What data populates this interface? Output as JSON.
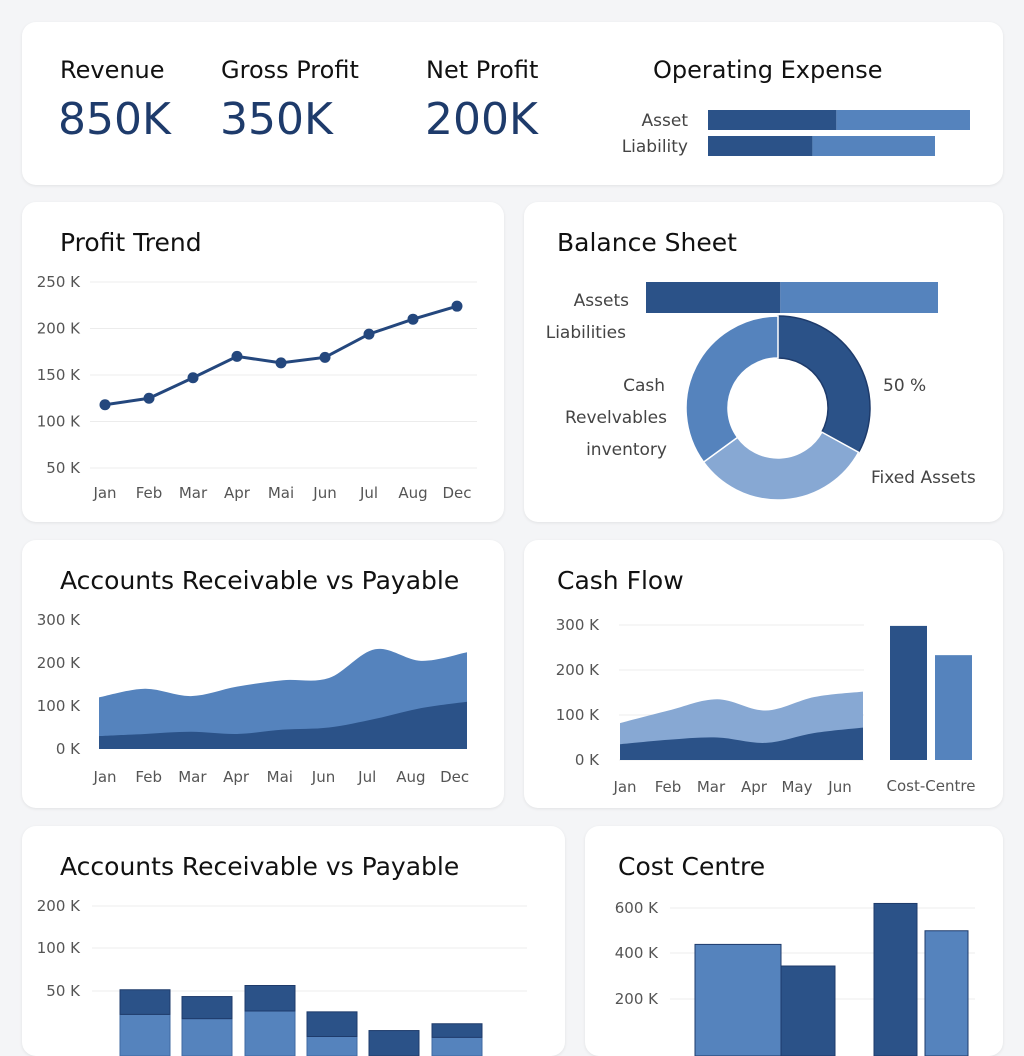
{
  "colors": {
    "dark": "#2b5288",
    "mid": "#5583bd",
    "light": "#87a8d3",
    "line": "#24477d",
    "kpi": "#1e3b6b"
  },
  "kpis": [
    {
      "label": "Revenue",
      "value": "850K"
    },
    {
      "label": "Gross Profit",
      "value": "350K"
    },
    {
      "label": "Net Profit",
      "value": "200K"
    }
  ],
  "opex": {
    "title": "Operating Expense",
    "rows": [
      {
        "label": "Asset",
        "values": [
          49,
          51
        ]
      },
      {
        "label": "Liability",
        "values": [
          46,
          54
        ]
      }
    ]
  },
  "profit_trend": {
    "title": "Profit Trend"
  },
  "balance_sheet": {
    "title": "Balance Sheet",
    "bar_labels": [
      "Assets",
      "Liabilities"
    ],
    "asset_split": [
      46,
      54
    ],
    "donut_labels": [
      "Cash",
      "Revelvables",
      "inventory"
    ],
    "percent_label": "50 %",
    "fixed_label": "Fixed Assets"
  },
  "ar_ap_area": {
    "title": "Accounts Receivable vs Payable"
  },
  "cash_flow": {
    "title": "Cash Flow"
  },
  "ar_ap_bar": {
    "title": "Accounts Receivable vs Payable"
  },
  "cost_centre": {
    "title": "Cost Centre"
  },
  "chart_data": [
    {
      "type": "line",
      "title": "Profit Trend",
      "categories": [
        "Jan",
        "Feb",
        "Mar",
        "Apr",
        "Mai",
        "Jun",
        "Jul",
        "Aug",
        "Dec"
      ],
      "values": [
        118,
        125,
        147,
        170,
        163,
        169,
        194,
        210,
        224
      ],
      "yticks": [
        "250 K",
        "200 K",
        "150 K",
        "100 K",
        "50 K"
      ],
      "ylim": [
        50,
        250
      ]
    },
    {
      "type": "pie",
      "title": "Balance Sheet",
      "slices": [
        {
          "label": "Fixed Assets",
          "value": 33
        },
        {
          "label": "Revelvables",
          "value": 32
        },
        {
          "label": "Cash",
          "value": 35
        }
      ]
    },
    {
      "type": "area",
      "title": "Accounts Receivable vs Payable",
      "categories": [
        "Jan",
        "Feb",
        "Mar",
        "Apr",
        "Mai",
        "Jun",
        "Jul",
        "Aug",
        "Dec"
      ],
      "yticks": [
        "300 K",
        "200 K",
        "100 K",
        "0 K"
      ],
      "ylim": [
        0,
        300
      ],
      "series": [
        {
          "values": [
            120,
            140,
            123,
            145,
            160,
            165,
            232,
            205,
            225
          ]
        },
        {
          "values": [
            30,
            35,
            40,
            35,
            45,
            50,
            70,
            95,
            110
          ]
        }
      ]
    },
    {
      "type": "area",
      "title": "Cash Flow",
      "categories": [
        "Jan",
        "Feb",
        "Mar",
        "Apr",
        "May",
        "Jun"
      ],
      "yticks": [
        "300 K",
        "200 K",
        "100 K",
        "0 K"
      ],
      "ylim": [
        0,
        300
      ],
      "series": [
        {
          "values": [
            82,
            110,
            135,
            110,
            140,
            152
          ]
        },
        {
          "values": [
            35,
            45,
            50,
            38,
            60,
            72
          ]
        }
      ],
      "side_bars": {
        "label": "Cost-Centre",
        "values": [
          298,
          233
        ]
      }
    },
    {
      "type": "bar",
      "title": "Accounts Receivable vs Payable",
      "yticks": [
        "200 K",
        "100 K",
        "50 K"
      ],
      "ylim": [
        0,
        200
      ],
      "series": [
        {
          "values": [
            96,
            91,
            100,
            70,
            47,
            69
          ]
        },
        {
          "values": [
            29,
            26,
            30,
            29,
            30,
            16
          ]
        }
      ]
    },
    {
      "type": "bar",
      "title": "Cost Centre",
      "yticks": [
        "600 K",
        "400 K",
        "200 K"
      ],
      "ylim": [
        0,
        650
      ],
      "values": [
        440,
        345,
        620,
        500
      ]
    }
  ]
}
